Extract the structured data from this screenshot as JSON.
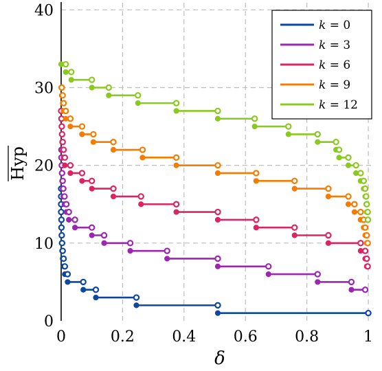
{
  "chart_data": {
    "type": "line",
    "title": "",
    "xlabel": "δ",
    "ylabel": "Hyp",
    "xlim": [
      0,
      1.02
    ],
    "ylim": [
      0,
      41
    ],
    "x_ticks": [
      0,
      0.2,
      0.4,
      0.6,
      0.8,
      1
    ],
    "x_tick_labels": [
      "0",
      "0.2",
      "0.4",
      "0.6",
      "0.8",
      "1"
    ],
    "y_ticks": [
      0,
      10,
      20,
      30,
      40
    ],
    "y_tick_labels": [
      "0",
      "10",
      "20",
      "30",
      "40"
    ],
    "grid": true,
    "legend_position": "top-right",
    "series": [
      {
        "name": "k = 0",
        "color": "#0d47a1",
        "steps": [
          {
            "y": 1,
            "x0": 0.51,
            "x1": 1.0
          },
          {
            "y": 2,
            "x0": 0.245,
            "x1": 0.51
          },
          {
            "y": 3,
            "x0": 0.113,
            "x1": 0.245
          },
          {
            "y": 4,
            "x0": 0.072,
            "x1": 0.113
          },
          {
            "y": 5,
            "x0": 0.021,
            "x1": 0.072
          },
          {
            "y": 6,
            "x0": 0.012,
            "x1": 0.021
          },
          {
            "y": 7,
            "x0": 0.008,
            "x1": 0.012
          },
          {
            "y": 8,
            "x0": 0.005,
            "x1": 0.008
          },
          {
            "y": 9,
            "x0": 0.003,
            "x1": 0.005
          },
          {
            "y": 10,
            "x0": 0.002,
            "x1": 0.003
          },
          {
            "y": 11,
            "x0": 0.001,
            "x1": 0.002
          },
          {
            "y": 12,
            "x0": 0.001,
            "x1": 0.001
          },
          {
            "y": 13,
            "x0": 0.0,
            "x1": 0.001
          },
          {
            "y": 14,
            "x0": 0.0,
            "x1": 0.0
          },
          {
            "y": 15,
            "x0": 0.0,
            "x1": 0.0
          },
          {
            "y": 16,
            "x0": 0.0,
            "x1": 0.0
          },
          {
            "y": 17,
            "x0": 0.0,
            "x1": 0.0
          }
        ]
      },
      {
        "name": "k = 3",
        "color": "#9b27b0",
        "steps": [
          {
            "y": 4,
            "x0": 0.945,
            "x1": 0.99
          },
          {
            "y": 5,
            "x0": 0.835,
            "x1": 0.945
          },
          {
            "y": 6,
            "x0": 0.675,
            "x1": 0.835
          },
          {
            "y": 7,
            "x0": 0.51,
            "x1": 0.675
          },
          {
            "y": 8,
            "x0": 0.345,
            "x1": 0.51
          },
          {
            "y": 9,
            "x0": 0.225,
            "x1": 0.345
          },
          {
            "y": 10,
            "x0": 0.14,
            "x1": 0.225
          },
          {
            "y": 11,
            "x0": 0.1,
            "x1": 0.14
          },
          {
            "y": 12,
            "x0": 0.045,
            "x1": 0.1
          },
          {
            "y": 13,
            "x0": 0.025,
            "x1": 0.045
          },
          {
            "y": 14,
            "x0": 0.017,
            "x1": 0.025
          },
          {
            "y": 15,
            "x0": 0.011,
            "x1": 0.017
          },
          {
            "y": 16,
            "x0": 0.007,
            "x1": 0.011
          },
          {
            "y": 17,
            "x0": 0.005,
            "x1": 0.007
          },
          {
            "y": 18,
            "x0": 0.003,
            "x1": 0.005
          },
          {
            "y": 19,
            "x0": 0.002,
            "x1": 0.003
          },
          {
            "y": 20,
            "x0": 0.001,
            "x1": 0.002
          },
          {
            "y": 21,
            "x0": 0.001,
            "x1": 0.001
          },
          {
            "y": 22,
            "x0": 0.0,
            "x1": 0.001
          }
        ]
      },
      {
        "name": "k = 6",
        "color": "#dc2460",
        "steps": [
          {
            "y": 7,
            "x0": 0.995,
            "x1": 0.998
          },
          {
            "y": 8,
            "x0": 0.99,
            "x1": 0.995
          },
          {
            "y": 9,
            "x0": 0.975,
            "x1": 0.99
          },
          {
            "y": 10,
            "x0": 0.87,
            "x1": 0.975
          },
          {
            "y": 11,
            "x0": 0.76,
            "x1": 0.87
          },
          {
            "y": 12,
            "x0": 0.635,
            "x1": 0.76
          },
          {
            "y": 13,
            "x0": 0.51,
            "x1": 0.635
          },
          {
            "y": 14,
            "x0": 0.375,
            "x1": 0.51
          },
          {
            "y": 15,
            "x0": 0.26,
            "x1": 0.375
          },
          {
            "y": 16,
            "x0": 0.17,
            "x1": 0.26
          },
          {
            "y": 17,
            "x0": 0.1,
            "x1": 0.17
          },
          {
            "y": 18,
            "x0": 0.068,
            "x1": 0.1
          },
          {
            "y": 19,
            "x0": 0.03,
            "x1": 0.068
          },
          {
            "y": 20,
            "x0": 0.012,
            "x1": 0.03
          },
          {
            "y": 21,
            "x0": 0.008,
            "x1": 0.012
          },
          {
            "y": 22,
            "x0": 0.005,
            "x1": 0.008
          },
          {
            "y": 23,
            "x0": 0.003,
            "x1": 0.005
          },
          {
            "y": 24,
            "x0": 0.002,
            "x1": 0.003
          },
          {
            "y": 25,
            "x0": 0.001,
            "x1": 0.002
          },
          {
            "y": 26,
            "x0": 0.0,
            "x1": 0.001
          },
          {
            "y": 27,
            "x0": 0.0,
            "x1": 0.0
          }
        ]
      },
      {
        "name": "k = 9",
        "color": "#f57c00",
        "steps": [
          {
            "y": 10,
            "x0": 0.995,
            "x1": 0.998
          },
          {
            "y": 11,
            "x0": 0.99,
            "x1": 0.995
          },
          {
            "y": 12,
            "x0": 0.985,
            "x1": 0.99
          },
          {
            "y": 13,
            "x0": 0.975,
            "x1": 0.985
          },
          {
            "y": 14,
            "x0": 0.955,
            "x1": 0.975
          },
          {
            "y": 15,
            "x0": 0.935,
            "x1": 0.955
          },
          {
            "y": 16,
            "x0": 0.87,
            "x1": 0.935
          },
          {
            "y": 17,
            "x0": 0.76,
            "x1": 0.87
          },
          {
            "y": 18,
            "x0": 0.635,
            "x1": 0.76
          },
          {
            "y": 19,
            "x0": 0.51,
            "x1": 0.635
          },
          {
            "y": 20,
            "x0": 0.375,
            "x1": 0.51
          },
          {
            "y": 21,
            "x0": 0.265,
            "x1": 0.375
          },
          {
            "y": 22,
            "x0": 0.17,
            "x1": 0.265
          },
          {
            "y": 23,
            "x0": 0.105,
            "x1": 0.17
          },
          {
            "y": 24,
            "x0": 0.068,
            "x1": 0.105
          },
          {
            "y": 25,
            "x0": 0.03,
            "x1": 0.068
          },
          {
            "y": 26,
            "x0": 0.015,
            "x1": 0.03
          },
          {
            "y": 27,
            "x0": 0.008,
            "x1": 0.015
          },
          {
            "y": 28,
            "x0": 0.005,
            "x1": 0.008
          },
          {
            "y": 29,
            "x0": 0.002,
            "x1": 0.005
          },
          {
            "y": 30,
            "x0": 0.0,
            "x1": 0.002
          }
        ]
      },
      {
        "name": "k = 12",
        "color": "#8bc820",
        "steps": [
          {
            "y": 13,
            "x0": 0.998,
            "x1": 0.999
          },
          {
            "y": 14,
            "x0": 0.995,
            "x1": 0.998
          },
          {
            "y": 15,
            "x0": 0.993,
            "x1": 0.995
          },
          {
            "y": 16,
            "x0": 0.99,
            "x1": 0.993
          },
          {
            "y": 17,
            "x0": 0.985,
            "x1": 0.99
          },
          {
            "y": 18,
            "x0": 0.975,
            "x1": 0.985
          },
          {
            "y": 19,
            "x0": 0.96,
            "x1": 0.975
          },
          {
            "y": 20,
            "x0": 0.935,
            "x1": 0.96
          },
          {
            "y": 21,
            "x0": 0.905,
            "x1": 0.935
          },
          {
            "y": 22,
            "x0": 0.895,
            "x1": 0.905
          },
          {
            "y": 23,
            "x0": 0.835,
            "x1": 0.895
          },
          {
            "y": 24,
            "x0": 0.74,
            "x1": 0.835
          },
          {
            "y": 25,
            "x0": 0.63,
            "x1": 0.74
          },
          {
            "y": 26,
            "x0": 0.51,
            "x1": 0.63
          },
          {
            "y": 27,
            "x0": 0.375,
            "x1": 0.51
          },
          {
            "y": 28,
            "x0": 0.25,
            "x1": 0.375
          },
          {
            "y": 29,
            "x0": 0.155,
            "x1": 0.25
          },
          {
            "y": 30,
            "x0": 0.1,
            "x1": 0.155
          },
          {
            "y": 31,
            "x0": 0.033,
            "x1": 0.1
          },
          {
            "y": 32,
            "x0": 0.015,
            "x1": 0.033
          },
          {
            "y": 33,
            "x0": 0.0,
            "x1": 0.015
          }
        ]
      }
    ]
  }
}
